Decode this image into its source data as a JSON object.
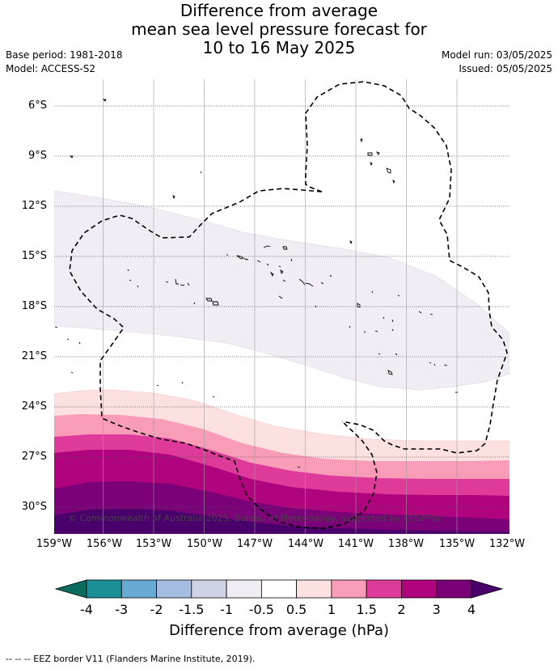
{
  "title_lines": [
    "Difference from average",
    "mean sea level pressure forecast for",
    "10 to 16 May 2025"
  ],
  "base_period": "Base period: 1981-2018",
  "model": "Model: ACCESS-S2",
  "model_run": "Model run: 03/05/2025",
  "issued": "Issued: 05/05/2025",
  "credit": "© Commonwealth of Australia 2025, Bureau of Meteorology, supported by COSPPac",
  "lat_labels": [
    "6°S",
    "9°S",
    "12°S",
    "15°S",
    "18°S",
    "21°S",
    "24°S",
    "27°S",
    "30°S"
  ],
  "lon_labels": [
    "159°W",
    "156°W",
    "153°W",
    "150°W",
    "147°W",
    "144°W",
    "141°W",
    "138°W",
    "135°W",
    "132°W"
  ],
  "colorbar": {
    "ticks": [
      "-4",
      "-3",
      "-2",
      "-1.5",
      "-1",
      "-0.5",
      "0.5",
      "1",
      "1.5",
      "2",
      "3",
      "4"
    ],
    "colors": [
      "#1a8f97",
      "#69aad4",
      "#a5bde0",
      "#d0d2e6",
      "#f2edf5",
      "#ffffff",
      "#fde0e0",
      "#f89cb8",
      "#dd3a99",
      "#b0047f",
      "#7a0177"
    ],
    "under_color": "#0a6b5e",
    "over_color": "#49006a",
    "title": "Difference from average (hPa)"
  },
  "legend_note": "-- -- -- EEZ border V11 (Flanders Marine Institute, 2019)."
}
